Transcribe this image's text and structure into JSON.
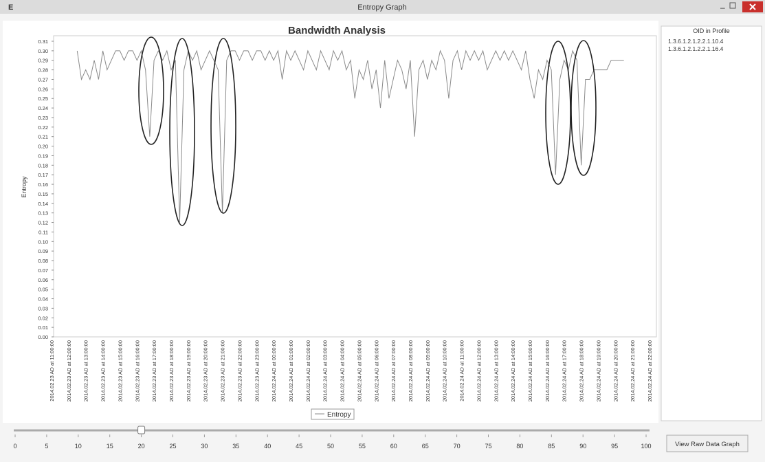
{
  "window": {
    "icon": "E",
    "title": "Entropy Graph"
  },
  "chart_data": {
    "type": "line",
    "title": "Bandwidth Analysis",
    "y_label": "Entropy",
    "categories": [
      "2014.02.23 AD at 11:00:00",
      null,
      null,
      null,
      "2014.02.23 AD at 12:00:00",
      null,
      null,
      null,
      "2014.02.23 AD at 13:00:00",
      null,
      null,
      null,
      "2014.02.23 AD at 14:00:00",
      null,
      null,
      null,
      "2014.02.23 AD at 15:00:00",
      null,
      null,
      null,
      "2014.02.23 AD at 16:00:00",
      null,
      null,
      null,
      "2014.02.23 AD at 17:00:00",
      null,
      null,
      null,
      "2014.02.23 AD at 18:00:00",
      null,
      null,
      null,
      "2014.02.23 AD at 19:00:00",
      null,
      null,
      null,
      "2014.02.23 AD at 20:00:00",
      null,
      null,
      null,
      "2014.02.23 AD at 21:00:00",
      null,
      null,
      null,
      "2014.02.23 AD at 22:00:00",
      null,
      null,
      null,
      "2014.02.23 AD at 23:00:00",
      null,
      null,
      null,
      "2014.02.24 AD at 00:00:00",
      null,
      null,
      null,
      "2014.02.24 AD at 01:00:00",
      null,
      null,
      null,
      "2014.02.24 AD at 02:00:00",
      null,
      null,
      null,
      "2014.02.24 AD at 03:00:00",
      null,
      null,
      null,
      "2014.02.24 AD at 04:00:00",
      null,
      null,
      null,
      "2014.02.24 AD at 05:00:00",
      null,
      null,
      null,
      "2014.02.24 AD at 06:00:00",
      null,
      null,
      null,
      "2014.02.24 AD at 07:00:00",
      null,
      null,
      null,
      "2014.02.24 AD at 08:00:00",
      null,
      null,
      null,
      "2014.02.24 AD at 09:00:00",
      null,
      null,
      null,
      "2014.02.24 AD at 10:00:00",
      null,
      null,
      null,
      "2014.02.24 AD at 11:00:00",
      null,
      null,
      null,
      "2014.02.24 AD at 12:00:00",
      null,
      null,
      null,
      "2014.02.24 AD at 13:00:00",
      null,
      null,
      null,
      "2014.02.24 AD at 14:00:00",
      null,
      null,
      null,
      "2014.02.24 AD at 15:00:00",
      null,
      null,
      null,
      "2014.02.24 AD at 16:00:00",
      null,
      null,
      null,
      "2014.02.24 AD at 17:00:00",
      null,
      null,
      null,
      "2014.02.24 AD at 18:00:00",
      null,
      null,
      null,
      "2014.02.24 AD at 19:00:00",
      null,
      null,
      null,
      "2014.02.24 AD at 20:00:00",
      null,
      null,
      null,
      "2014.02.24 AD at 21:00:00",
      null,
      null,
      null,
      "2014.02.24 AD at 22:00:00"
    ],
    "series": [
      {
        "name": "Entropy",
        "color": "#8a8a8a",
        "values": [
          null,
          null,
          null,
          null,
          null,
          null,
          0.3,
          0.27,
          0.28,
          0.27,
          0.29,
          0.27,
          0.3,
          0.28,
          0.29,
          0.3,
          0.3,
          0.29,
          0.3,
          0.3,
          0.29,
          0.3,
          0.28,
          0.21,
          0.29,
          0.3,
          0.29,
          0.3,
          0.28,
          0.29,
          0.12,
          0.28,
          0.3,
          0.29,
          0.3,
          0.28,
          0.29,
          0.3,
          0.29,
          0.28,
          0.13,
          0.29,
          0.3,
          0.3,
          0.29,
          0.3,
          0.3,
          0.29,
          0.3,
          0.3,
          0.29,
          0.3,
          0.29,
          0.3,
          0.27,
          0.3,
          0.29,
          0.3,
          0.29,
          0.28,
          0.3,
          0.29,
          0.28,
          0.3,
          0.29,
          0.28,
          0.3,
          0.29,
          0.3,
          0.28,
          0.29,
          0.25,
          0.28,
          0.27,
          0.29,
          0.26,
          0.28,
          0.24,
          0.29,
          0.25,
          0.27,
          0.29,
          0.28,
          0.26,
          0.29,
          0.21,
          0.28,
          0.29,
          0.27,
          0.29,
          0.28,
          0.3,
          0.29,
          0.25,
          0.29,
          0.3,
          0.28,
          0.3,
          0.29,
          0.3,
          0.29,
          0.3,
          0.28,
          0.29,
          0.3,
          0.29,
          0.3,
          0.29,
          0.3,
          0.29,
          0.28,
          0.3,
          0.27,
          0.25,
          0.28,
          0.27,
          0.29,
          0.28,
          0.17,
          0.27,
          0.29,
          0.28,
          0.3,
          0.29,
          0.18,
          0.27,
          0.27,
          0.28,
          0.28,
          0.28,
          0.28,
          0.29,
          0.29,
          0.29,
          0.29,
          null,
          null,
          null,
          null,
          null,
          null
        ]
      }
    ],
    "ylim": [
      0,
      0.31
    ],
    "yticks": [
      {
        "value": 0,
        "label": "0.00"
      },
      {
        "value": 0.01,
        "label": "0.01"
      },
      {
        "value": 0.02,
        "label": "0.02"
      },
      {
        "value": 0.03,
        "label": "0.03"
      },
      {
        "value": 0.04,
        "label": "0.04"
      },
      {
        "value": 0.05,
        "label": "0.05"
      },
      {
        "value": 0.06,
        "label": "0.06"
      },
      {
        "value": 0.07,
        "label": "0.07"
      },
      {
        "value": 0.08,
        "label": "0.08"
      },
      {
        "value": 0.09,
        "label": "0.09"
      },
      {
        "value": 0.1,
        "label": "0.10"
      },
      {
        "value": 0.11,
        "label": "0.11"
      },
      {
        "value": 0.12,
        "label": "0.12"
      },
      {
        "value": 0.13,
        "label": "0.13"
      },
      {
        "value": 0.14,
        "label": "0.14"
      },
      {
        "value": 0.15,
        "label": "0.15"
      },
      {
        "value": 0.16,
        "label": "0.16"
      },
      {
        "value": 0.17,
        "label": "0.17"
      },
      {
        "value": 0.18,
        "label": "0.18"
      },
      {
        "value": 0.19,
        "label": "0.19"
      },
      {
        "value": 0.2,
        "label": "0.20"
      },
      {
        "value": 0.21,
        "label": "0.21"
      },
      {
        "value": 0.22,
        "label": "0.22"
      },
      {
        "value": 0.23,
        "label": "0.23"
      },
      {
        "value": 0.24,
        "label": "0.24"
      },
      {
        "value": 0.25,
        "label": "0.25"
      },
      {
        "value": 0.26,
        "label": "0.26"
      },
      {
        "value": 0.27,
        "label": "0.27"
      },
      {
        "value": 0.28,
        "label": "0.28"
      },
      {
        "value": 0.29,
        "label": "0.29"
      },
      {
        "value": 0.3,
        "label": "0.30"
      },
      {
        "value": 0.31,
        "label": "0.31"
      }
    ],
    "grid": false,
    "legend": "bottom"
  },
  "sidebar": {
    "title": "OID in Profile",
    "items": [
      "1.3.6.1.2.1.2.2.1.10.4",
      "1.3.6.1.2.1.2.2.1.16.4"
    ]
  },
  "slider": {
    "value": 20,
    "ticks": [
      0,
      5,
      10,
      15,
      20,
      25,
      30,
      35,
      40,
      45,
      50,
      55,
      60,
      65,
      70,
      75,
      80,
      85,
      90,
      95,
      100
    ]
  },
  "button": {
    "label": "View Raw Data Graph"
  }
}
